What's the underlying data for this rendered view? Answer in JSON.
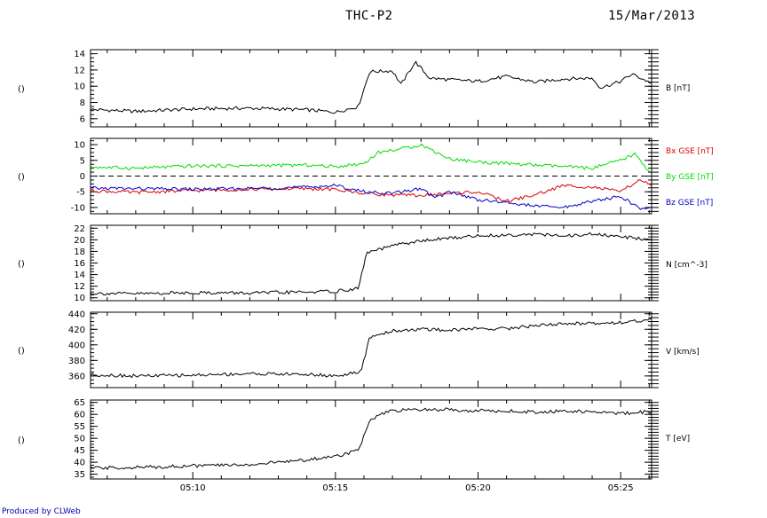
{
  "header": {
    "title": "THC-P2",
    "date": "15/Mar/2013"
  },
  "footer": {
    "produced_by": "Produced by CLWeb"
  },
  "colors": {
    "black": "#000000",
    "red": "#dd0000",
    "green": "#00dd00",
    "blue": "#0000cc"
  },
  "chart_data": [
    {
      "type": "line",
      "panel": "B",
      "left_label": "()",
      "ylim": [
        5,
        14.5
      ],
      "yticks": [
        6,
        8,
        10,
        12,
        14
      ],
      "xlabels": [
        "05:10",
        "05:15",
        "05:20",
        "05:25"
      ],
      "series": [
        {
          "name": "B [nT]",
          "color": "#000000",
          "x": [
            "05:06",
            "05:08",
            "05:10",
            "05:12",
            "05:14",
            "05:15",
            "05:15.8",
            "05:16.2",
            "05:17",
            "05:17.3",
            "05:17.8",
            "05:18.3",
            "05:19",
            "05:20",
            "05:21",
            "05:22",
            "05:23",
            "05:24",
            "05:24.3",
            "05:25",
            "05:25.4",
            "05:26"
          ],
          "values": [
            7.2,
            6.9,
            7.2,
            7.3,
            7.1,
            6.8,
            7.5,
            11.8,
            11.9,
            10.2,
            13.0,
            11.0,
            10.8,
            10.6,
            11.2,
            10.5,
            10.9,
            11.0,
            9.8,
            10.6,
            11.5,
            10.5
          ]
        }
      ]
    },
    {
      "type": "line",
      "panel": "Bxyz",
      "left_label": "()",
      "ylim": [
        -12,
        12
      ],
      "yticks": [
        -10,
        -5,
        0,
        5,
        10
      ],
      "zero_line": true,
      "xlabels": [
        "05:10",
        "05:15",
        "05:20",
        "05:25"
      ],
      "series": [
        {
          "name": "Bx GSE [nT]",
          "color": "#dd0000",
          "x": [
            "05:06",
            "05:08",
            "05:10",
            "05:12",
            "05:14",
            "05:15",
            "05:16",
            "05:17",
            "05:18",
            "05:19",
            "05:20",
            "05:21",
            "05:22",
            "05:23",
            "05:24",
            "05:25",
            "05:25.7",
            "05:26"
          ],
          "values": [
            -4.5,
            -5.2,
            -4.6,
            -4.2,
            -4.0,
            -4.3,
            -5.5,
            -6.0,
            -6.2,
            -5.5,
            -5.0,
            -8.0,
            -6.0,
            -3.0,
            -3.5,
            -5.0,
            -1.0,
            -3.0
          ]
        },
        {
          "name": "By GSE [nT]",
          "color": "#00dd00",
          "x": [
            "05:06",
            "05:08",
            "05:10",
            "05:12",
            "05:14",
            "05:15",
            "05:16",
            "05:16.5",
            "05:17.5",
            "05:18",
            "05:19",
            "05:20",
            "05:21",
            "05:22",
            "05:23",
            "05:24",
            "05:25",
            "05:25.5",
            "05:26"
          ],
          "values": [
            3.0,
            2.5,
            3.2,
            3.3,
            3.5,
            3.0,
            4.0,
            7.5,
            9.0,
            10.0,
            5.5,
            4.5,
            4.0,
            3.5,
            3.0,
            2.5,
            5.0,
            7.0,
            1.5
          ]
        },
        {
          "name": "Bz GSE [nT]",
          "color": "#0000cc",
          "x": [
            "05:06",
            "05:08",
            "05:10",
            "05:12",
            "05:14",
            "05:15",
            "05:16",
            "05:17",
            "05:18",
            "05:18.5",
            "05:19",
            "05:20",
            "05:21",
            "05:22",
            "05:23",
            "05:24",
            "05:25",
            "05:25.7",
            "05:26"
          ],
          "values": [
            -3.8,
            -4.0,
            -4.2,
            -4.0,
            -3.5,
            -3.0,
            -5.0,
            -5.5,
            -4.0,
            -7.0,
            -5.0,
            -7.5,
            -8.5,
            -9.5,
            -10.0,
            -8.0,
            -6.5,
            -10.5,
            -10.0
          ]
        }
      ]
    },
    {
      "type": "line",
      "panel": "N",
      "left_label": "()",
      "ylim": [
        9.5,
        22.5
      ],
      "yticks": [
        10,
        12,
        14,
        16,
        18,
        20,
        22
      ],
      "xlabels": [
        "05:10",
        "05:15",
        "05:20",
        "05:25"
      ],
      "series": [
        {
          "name": "N [cm^-3]",
          "color": "#000000",
          "x": [
            "05:06",
            "05:08",
            "05:10",
            "05:12",
            "05:14",
            "05:15",
            "05:15.8",
            "05:16.1",
            "05:16.6",
            "05:17",
            "05:18",
            "05:19",
            "05:20",
            "05:21",
            "05:22",
            "05:23",
            "05:24",
            "05:25",
            "05:26"
          ],
          "values": [
            10.8,
            10.7,
            10.9,
            10.8,
            11.0,
            11.1,
            11.6,
            17.8,
            18.4,
            19.0,
            19.8,
            20.3,
            20.7,
            20.8,
            21.0,
            20.6,
            21.0,
            20.5,
            20.1
          ]
        }
      ]
    },
    {
      "type": "line",
      "panel": "V",
      "left_label": "()",
      "ylim": [
        345,
        442
      ],
      "yticks": [
        360,
        380,
        400,
        420,
        440
      ],
      "xlabels": [
        "05:10",
        "05:15",
        "05:20",
        "05:25"
      ],
      "series": [
        {
          "name": "V [km/s]",
          "color": "#000000",
          "x": [
            "05:06",
            "05:08",
            "05:10",
            "05:12",
            "05:14",
            "05:15",
            "05:15.9",
            "05:16.2",
            "05:17",
            "05:18",
            "05:19",
            "05:20",
            "05:21",
            "05:22",
            "05:23",
            "05:24",
            "05:25",
            "05:26"
          ],
          "values": [
            362,
            360,
            361,
            363,
            362,
            360,
            365,
            410,
            418,
            420,
            419,
            421,
            421,
            425,
            427,
            428,
            429,
            432
          ]
        }
      ]
    },
    {
      "type": "line",
      "panel": "T",
      "left_label": "()",
      "ylim": [
        33,
        66
      ],
      "yticks": [
        35,
        40,
        45,
        50,
        55,
        60,
        65
      ],
      "xlabels": [
        "05:10",
        "05:15",
        "05:20",
        "05:25"
      ],
      "series": [
        {
          "name": "T [eV]",
          "color": "#000000",
          "x": [
            "05:06",
            "05:08",
            "05:10",
            "05:12",
            "05:13",
            "05:14",
            "05:15",
            "05:15.8",
            "05:16.2",
            "05:16.6",
            "05:17",
            "05:18",
            "05:19",
            "05:20",
            "05:21",
            "05:22",
            "05:23",
            "05:24",
            "05:25",
            "05:26"
          ],
          "values": [
            37.5,
            37.8,
            38.5,
            39.0,
            40.0,
            41.0,
            42.5,
            45.0,
            57.0,
            60.0,
            61.5,
            62.0,
            62.0,
            61.5,
            61.5,
            61.0,
            61.5,
            61.0,
            60.5,
            61.0
          ]
        }
      ]
    }
  ]
}
